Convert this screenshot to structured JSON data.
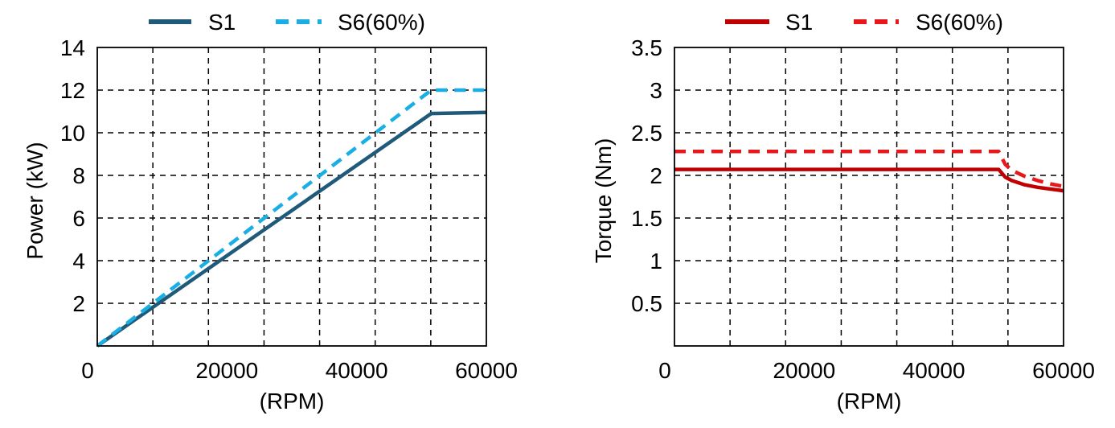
{
  "chart_data": [
    {
      "type": "line",
      "xlabel": "(RPM)",
      "ylabel": "Power (kW)",
      "xlim": [
        0,
        60000
      ],
      "ylim": [
        0,
        14
      ],
      "x_ticks": [
        "0",
        "20000",
        "40000",
        "60000"
      ],
      "y_ticks": [
        "2",
        "4",
        "6",
        "8",
        "10",
        "12",
        "14"
      ],
      "x_tick_values": [
        0,
        20000,
        40000,
        60000
      ],
      "y_tick_values": [
        2,
        4,
        6,
        8,
        10,
        12,
        14
      ],
      "grid": true,
      "legend_position": "top",
      "series": [
        {
          "name": "S1",
          "color": "#1f5a7a",
          "style": "solid",
          "x": [
            0,
            51500,
            60000
          ],
          "y": [
            0,
            10.9,
            10.95
          ]
        },
        {
          "name": "S6(60%)",
          "color": "#1aaee5",
          "style": "dashed",
          "x": [
            0,
            51500,
            60000
          ],
          "y": [
            0,
            12.0,
            12.0
          ]
        }
      ]
    },
    {
      "type": "line",
      "xlabel": "(RPM)",
      "ylabel": "Torque  (Nm)",
      "xlim": [
        0,
        60000
      ],
      "ylim": [
        0,
        3.5
      ],
      "x_ticks": [
        "0",
        "20000",
        "40000",
        "60000"
      ],
      "y_ticks": [
        "0.5",
        "1",
        "1.5",
        "2",
        "2.5",
        "3",
        "3.5"
      ],
      "x_tick_values": [
        0,
        20000,
        40000,
        60000
      ],
      "y_tick_values": [
        0.5,
        1,
        1.5,
        2,
        2.5,
        3,
        3.5
      ],
      "grid": true,
      "legend_position": "top",
      "series": [
        {
          "name": "S1",
          "color": "#c00000",
          "style": "solid",
          "x": [
            0,
            50000,
            51000,
            52000,
            54000,
            56000,
            58000,
            60000
          ],
          "y": [
            2.07,
            2.07,
            1.98,
            1.94,
            1.89,
            1.86,
            1.84,
            1.82
          ]
        },
        {
          "name": "S6(60%)",
          "color": "#e8171c",
          "style": "dashed",
          "x": [
            0,
            50000,
            51000,
            52000,
            54000,
            56000,
            58000,
            60000
          ],
          "y": [
            2.28,
            2.28,
            2.13,
            2.06,
            1.99,
            1.94,
            1.9,
            1.87
          ]
        }
      ]
    }
  ]
}
